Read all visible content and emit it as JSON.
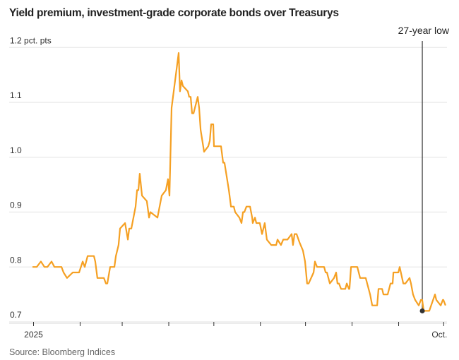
{
  "chart_data": {
    "type": "line",
    "title": "Yield premium, investment-grade corporate bonds over Treasurys",
    "ylabel": "pct. pts",
    "xlabel": "",
    "ylim": [
      0.7,
      1.2
    ],
    "yticks": [
      0.7,
      0.8,
      0.9,
      1.0,
      1.1,
      1.2
    ],
    "ytick_labels": [
      "0.7",
      "0.8",
      "0.9",
      "1.0",
      "1.1",
      "1.2 pct. pts"
    ],
    "x_unit": "days since Jan. 1, 2025",
    "xlim": [
      0,
      275
    ],
    "xticks": [
      0,
      31,
      59,
      90,
      120,
      151,
      181,
      212,
      243,
      273
    ],
    "xtick_labels": [
      "2025",
      "",
      "",
      "",
      "",
      "",
      "",
      "",
      "",
      "Oct."
    ],
    "grid": true,
    "color": "#f5a023",
    "series": [
      {
        "name": "Yield premium",
        "x": [
          0,
          2.8,
          5.6,
          8.0,
          9.9,
          12.7,
          14.6,
          19.3,
          20.7,
          23.0,
          26.8,
          31.0,
          33.4,
          34.8,
          36.7,
          40.9,
          41.8,
          43.2,
          47.5,
          48.9,
          49.8,
          51.7,
          54.5,
          55.5,
          57.3,
          58.3,
          61.6,
          63.5,
          64.4,
          65.8,
          68.6,
          69.6,
          70.5,
          71.4,
          72.9,
          76.1,
          77.6,
          78.5,
          83.2,
          86.0,
          88.8,
          90.2,
          91.2,
          92.6,
          95.9,
          97.3,
          98.2,
          99.2,
          100.1,
          103.4,
          104.3,
          105.3,
          106.2,
          107.2,
          110.0,
          110.9,
          111.9,
          114.2,
          117.0,
          118.0,
          118.9,
          120.3,
          120.8,
          125.5,
          126.9,
          127.8,
          130.7,
          132.1,
          134.0,
          134.9,
          137.7,
          139.1,
          140.1,
          141.0,
          142.4,
          144.8,
          146.2,
          146.6,
          148.1,
          149.0,
          151.3,
          152.8,
          154.6,
          156.0,
          158.9,
          162.2,
          163.1,
          165.4,
          166.9,
          169.7,
          172.5,
          173.4,
          174.4,
          175.8,
          177.7,
          180.0,
          181.4,
          182.8,
          183.8,
          187.1,
          188.0,
          189.4,
          194.1,
          195.1,
          196.0,
          197.9,
          200.7,
          202.1,
          203.0,
          204.0,
          205.4,
          208.2,
          209.2,
          210.6,
          211.0,
          212.0,
          216.2,
          218.1,
          221.8,
          224.7,
          226.1,
          229.4,
          230.3,
          231.7,
          232.7,
          233.6,
          236.4,
          238.3,
          239.7,
          240.2,
          243.5,
          244.4,
          246.8,
          248.2,
          251.0,
          251.9,
          253.3,
          254.7,
          257.1,
          258.5,
          259.4,
          260.4,
          264.1,
          267.9,
          268.8,
          271.7,
          273.1,
          273.5,
          274.9
        ],
        "y": [
          0.8,
          0.8,
          0.81,
          0.8,
          0.8,
          0.81,
          0.8,
          0.8,
          0.79,
          0.78,
          0.79,
          0.79,
          0.81,
          0.8,
          0.82,
          0.82,
          0.81,
          0.78,
          0.78,
          0.77,
          0.77,
          0.8,
          0.8,
          0.82,
          0.84,
          0.87,
          0.88,
          0.85,
          0.87,
          0.87,
          0.91,
          0.94,
          0.94,
          0.97,
          0.93,
          0.92,
          0.89,
          0.9,
          0.89,
          0.93,
          0.94,
          0.96,
          0.93,
          1.09,
          1.16,
          1.19,
          1.12,
          1.14,
          1.13,
          1.12,
          1.11,
          1.11,
          1.08,
          1.08,
          1.11,
          1.09,
          1.05,
          1.01,
          1.02,
          1.03,
          1.06,
          1.06,
          1.02,
          1.02,
          0.99,
          0.99,
          0.94,
          0.91,
          0.91,
          0.9,
          0.89,
          0.88,
          0.9,
          0.9,
          0.91,
          0.91,
          0.89,
          0.88,
          0.89,
          0.88,
          0.88,
          0.86,
          0.88,
          0.85,
          0.84,
          0.84,
          0.85,
          0.84,
          0.85,
          0.85,
          0.86,
          0.84,
          0.86,
          0.86,
          0.845,
          0.83,
          0.81,
          0.77,
          0.77,
          0.79,
          0.81,
          0.8,
          0.8,
          0.79,
          0.79,
          0.77,
          0.78,
          0.79,
          0.77,
          0.77,
          0.76,
          0.76,
          0.77,
          0.76,
          0.76,
          0.8,
          0.8,
          0.78,
          0.78,
          0.75,
          0.73,
          0.73,
          0.76,
          0.76,
          0.76,
          0.75,
          0.75,
          0.77,
          0.77,
          0.79,
          0.79,
          0.8,
          0.77,
          0.77,
          0.78,
          0.77,
          0.75,
          0.74,
          0.73,
          0.74,
          0.74,
          0.72,
          0.72,
          0.75,
          0.74,
          0.73,
          0.74,
          0.74,
          0.73
        ]
      }
    ],
    "annotations": [
      {
        "text": "27-year low",
        "x": 260.4,
        "y": 0.72
      }
    ],
    "source": "Source: Bloomberg Indices"
  }
}
